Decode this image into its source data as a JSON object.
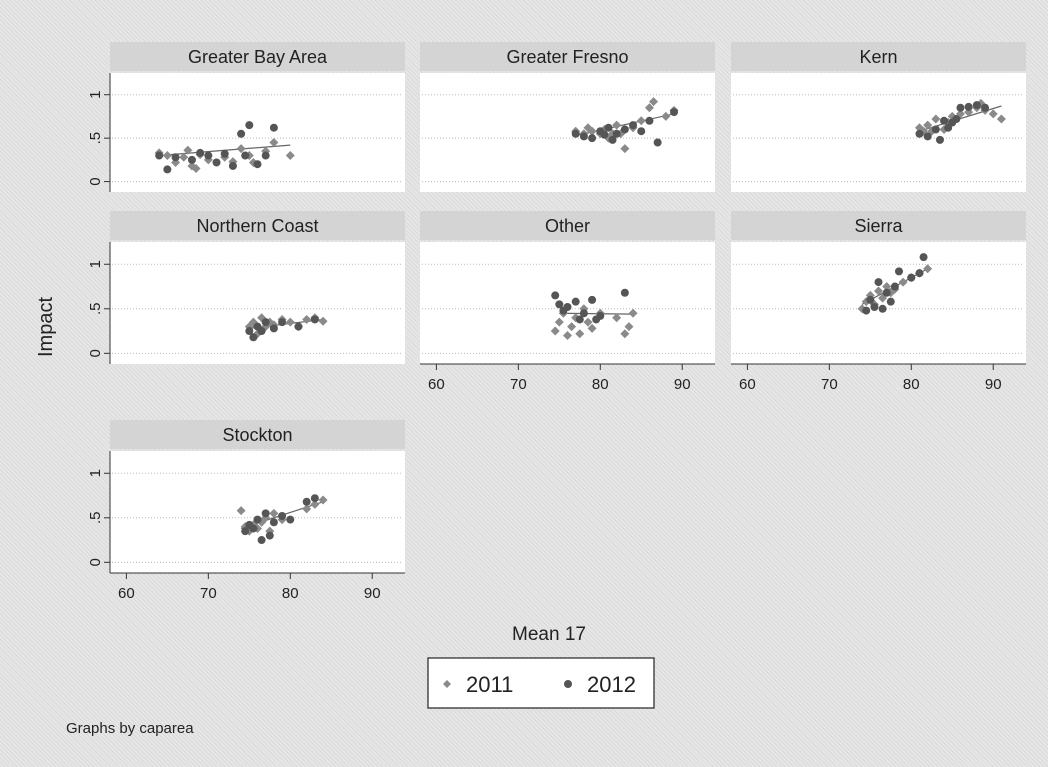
{
  "chart_data": {
    "type": "scatter",
    "ylabel": "Impact",
    "xlabel": "Mean 17",
    "note": "Graphs by caparea",
    "xlim": [
      58,
      94
    ],
    "ylim": [
      -0.12,
      1.25
    ],
    "xticks": [
      60,
      70,
      80,
      90
    ],
    "yticks": [
      0,
      0.5,
      1
    ],
    "ytick_labels": [
      "0",
      ".5",
      "1"
    ],
    "grid": true,
    "legend": {
      "position": "bottom-center",
      "entries": [
        {
          "label": "2011",
          "color": "#8a8a8a",
          "marker": "diamond"
        },
        {
          "label": "2012",
          "color": "#555555",
          "marker": "circle"
        }
      ]
    },
    "panels": [
      {
        "title": "Greater Bay Area",
        "fit": [
          [
            64,
            0.3
          ],
          [
            80,
            0.42
          ]
        ],
        "series": [
          {
            "name": "2011",
            "points": [
              [
                64,
                0.33
              ],
              [
                65,
                0.3
              ],
              [
                66,
                0.22
              ],
              [
                67,
                0.28
              ],
              [
                67.5,
                0.36
              ],
              [
                68,
                0.18
              ],
              [
                68.5,
                0.15
              ],
              [
                69,
                0.31
              ],
              [
                70,
                0.25
              ],
              [
                72,
                0.28
              ],
              [
                73,
                0.23
              ],
              [
                74,
                0.38
              ],
              [
                75,
                0.3
              ],
              [
                75.5,
                0.22
              ],
              [
                77,
                0.35
              ],
              [
                78,
                0.45
              ],
              [
                80,
                0.3
              ]
            ]
          },
          {
            "name": "2012",
            "points": [
              [
                64,
                0.3
              ],
              [
                65,
                0.14
              ],
              [
                66,
                0.28
              ],
              [
                68,
                0.25
              ],
              [
                69,
                0.33
              ],
              [
                70,
                0.3
              ],
              [
                71,
                0.22
              ],
              [
                72,
                0.32
              ],
              [
                73,
                0.18
              ],
              [
                74,
                0.55
              ],
              [
                74.5,
                0.3
              ],
              [
                75,
                0.65
              ],
              [
                76,
                0.2
              ],
              [
                77,
                0.3
              ],
              [
                78,
                0.62
              ]
            ]
          }
        ]
      },
      {
        "title": "Greater Fresno",
        "fit": [
          [
            77,
            0.53
          ],
          [
            89,
            0.78
          ]
        ],
        "series": [
          {
            "name": "2011",
            "points": [
              [
                77,
                0.58
              ],
              [
                78,
                0.55
              ],
              [
                78.5,
                0.62
              ],
              [
                79,
                0.58
              ],
              [
                80,
                0.55
              ],
              [
                80.5,
                0.6
              ],
              [
                81,
                0.5
              ],
              [
                81.5,
                0.55
              ],
              [
                82,
                0.65
              ],
              [
                82.5,
                0.55
              ],
              [
                83,
                0.38
              ],
              [
                84,
                0.62
              ],
              [
                85,
                0.7
              ],
              [
                86,
                0.85
              ],
              [
                86.5,
                0.92
              ],
              [
                88,
                0.75
              ],
              [
                89,
                0.82
              ]
            ]
          },
          {
            "name": "2012",
            "points": [
              [
                77,
                0.55
              ],
              [
                78,
                0.52
              ],
              [
                79,
                0.5
              ],
              [
                80,
                0.58
              ],
              [
                80.5,
                0.54
              ],
              [
                81,
                0.62
              ],
              [
                81.5,
                0.48
              ],
              [
                82,
                0.55
              ],
              [
                83,
                0.6
              ],
              [
                84,
                0.65
              ],
              [
                85,
                0.58
              ],
              [
                86,
                0.7
              ],
              [
                87,
                0.45
              ],
              [
                89,
                0.8
              ]
            ]
          }
        ]
      },
      {
        "title": "Kern",
        "fit": [
          [
            81,
            0.58
          ],
          [
            91,
            0.87
          ]
        ],
        "series": [
          {
            "name": "2011",
            "points": [
              [
                81,
                0.62
              ],
              [
                81.5,
                0.58
              ],
              [
                82,
                0.65
              ],
              [
                82.5,
                0.58
              ],
              [
                83,
                0.72
              ],
              [
                84,
                0.6
              ],
              [
                84.5,
                0.68
              ],
              [
                85,
                0.75
              ],
              [
                86,
                0.78
              ],
              [
                87,
                0.8
              ],
              [
                88,
                0.85
              ],
              [
                88.5,
                0.9
              ],
              [
                89,
                0.82
              ],
              [
                90,
                0.78
              ],
              [
                91,
                0.72
              ]
            ]
          },
          {
            "name": "2012",
            "points": [
              [
                81,
                0.55
              ],
              [
                82,
                0.52
              ],
              [
                83,
                0.6
              ],
              [
                83.5,
                0.48
              ],
              [
                84,
                0.7
              ],
              [
                84.5,
                0.62
              ],
              [
                85,
                0.68
              ],
              [
                85.5,
                0.72
              ],
              [
                86,
                0.85
              ],
              [
                87,
                0.86
              ],
              [
                88,
                0.88
              ],
              [
                89,
                0.85
              ]
            ]
          }
        ]
      },
      {
        "title": "Northern Coast",
        "fit": [
          [
            75,
            0.28
          ],
          [
            84,
            0.38
          ]
        ],
        "series": [
          {
            "name": "2011",
            "points": [
              [
                75,
                0.3
              ],
              [
                75.5,
                0.35
              ],
              [
                76,
                0.22
              ],
              [
                76.5,
                0.4
              ],
              [
                77,
                0.3
              ],
              [
                77.5,
                0.35
              ],
              [
                78,
                0.32
              ],
              [
                79,
                0.38
              ],
              [
                80,
                0.35
              ],
              [
                81,
                0.3
              ],
              [
                82,
                0.38
              ],
              [
                83,
                0.4
              ],
              [
                84,
                0.36
              ]
            ]
          },
          {
            "name": "2012",
            "points": [
              [
                75,
                0.25
              ],
              [
                75.5,
                0.18
              ],
              [
                76,
                0.3
              ],
              [
                76.5,
                0.25
              ],
              [
                77,
                0.35
              ],
              [
                78,
                0.28
              ],
              [
                79,
                0.35
              ],
              [
                81,
                0.3
              ],
              [
                83,
                0.38
              ]
            ]
          }
        ]
      },
      {
        "title": "Other",
        "fit": [
          [
            75,
            0.45
          ],
          [
            84,
            0.44
          ]
        ],
        "series": [
          {
            "name": "2011",
            "points": [
              [
                74.5,
                0.25
              ],
              [
                75,
                0.35
              ],
              [
                75.5,
                0.45
              ],
              [
                76,
                0.2
              ],
              [
                76.5,
                0.3
              ],
              [
                77,
                0.4
              ],
              [
                77.5,
                0.22
              ],
              [
                78,
                0.5
              ],
              [
                78.5,
                0.35
              ],
              [
                79,
                0.28
              ],
              [
                80,
                0.45
              ],
              [
                82,
                0.4
              ],
              [
                83,
                0.22
              ],
              [
                83.5,
                0.3
              ],
              [
                84,
                0.45
              ]
            ]
          },
          {
            "name": "2012",
            "points": [
              [
                74.5,
                0.65
              ],
              [
                75,
                0.55
              ],
              [
                75.5,
                0.48
              ],
              [
                76,
                0.52
              ],
              [
                77,
                0.58
              ],
              [
                77.5,
                0.38
              ],
              [
                78,
                0.45
              ],
              [
                79,
                0.6
              ],
              [
                79.5,
                0.38
              ],
              [
                80,
                0.42
              ],
              [
                83,
                0.68
              ]
            ]
          }
        ]
      },
      {
        "title": "Sierra",
        "fit": [
          [
            74,
            0.55
          ],
          [
            82,
            0.95
          ]
        ],
        "series": [
          {
            "name": "2011",
            "points": [
              [
                74,
                0.5
              ],
              [
                74.5,
                0.58
              ],
              [
                75,
                0.65
              ],
              [
                75.5,
                0.55
              ],
              [
                76,
                0.7
              ],
              [
                76.5,
                0.62
              ],
              [
                77,
                0.75
              ],
              [
                77.5,
                0.68
              ],
              [
                78,
                0.72
              ],
              [
                79,
                0.8
              ],
              [
                80,
                0.85
              ],
              [
                81,
                0.9
              ],
              [
                82,
                0.95
              ]
            ]
          },
          {
            "name": "2012",
            "points": [
              [
                74.5,
                0.48
              ],
              [
                75,
                0.6
              ],
              [
                75.5,
                0.52
              ],
              [
                76,
                0.8
              ],
              [
                76.5,
                0.5
              ],
              [
                77,
                0.68
              ],
              [
                77.5,
                0.58
              ],
              [
                78,
                0.75
              ],
              [
                78.5,
                0.92
              ],
              [
                80,
                0.85
              ],
              [
                81,
                0.9
              ],
              [
                81.5,
                1.08
              ]
            ]
          }
        ]
      },
      {
        "title": "Stockton",
        "fit": [
          [
            74,
            0.38
          ],
          [
            84,
            0.68
          ]
        ],
        "series": [
          {
            "name": "2011",
            "points": [
              [
                74,
                0.58
              ],
              [
                74.5,
                0.4
              ],
              [
                75,
                0.35
              ],
              [
                75.5,
                0.42
              ],
              [
                76,
                0.38
              ],
              [
                76.5,
                0.45
              ],
              [
                77,
                0.5
              ],
              [
                77.5,
                0.35
              ],
              [
                78,
                0.55
              ],
              [
                79,
                0.48
              ],
              [
                82,
                0.6
              ],
              [
                83,
                0.65
              ],
              [
                84,
                0.7
              ]
            ]
          },
          {
            "name": "2012",
            "points": [
              [
                74.5,
                0.35
              ],
              [
                75,
                0.42
              ],
              [
                75.5,
                0.38
              ],
              [
                76,
                0.48
              ],
              [
                76.5,
                0.25
              ],
              [
                77,
                0.55
              ],
              [
                77.5,
                0.3
              ],
              [
                78,
                0.45
              ],
              [
                79,
                0.52
              ],
              [
                80,
                0.48
              ],
              [
                82,
                0.68
              ],
              [
                83,
                0.72
              ]
            ]
          }
        ]
      }
    ]
  }
}
